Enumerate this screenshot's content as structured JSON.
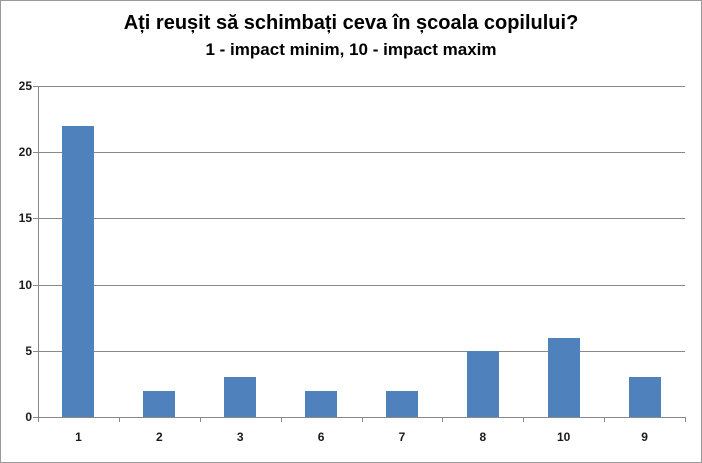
{
  "chart_data": {
    "type": "bar",
    "title": "Ați reușit să schimbați ceva în școala copilului?",
    "subtitle": "1 - impact minim, 10 - impact maxim",
    "categories": [
      "1",
      "2",
      "3",
      "6",
      "7",
      "8",
      "10",
      "9"
    ],
    "values": [
      22,
      2,
      3,
      2,
      2,
      5,
      6,
      3
    ],
    "xlabel": "",
    "ylabel": "",
    "ylim": [
      0,
      25
    ],
    "y_ticks": [
      0,
      5,
      10,
      15,
      20,
      25
    ],
    "grid": "horizontal",
    "legend_position": "none",
    "bar_color": "#4F81BD",
    "gridline_color": "#898989",
    "axis_color": "#898989",
    "text_color": "#000000",
    "background_color": "#FFFFFF"
  }
}
